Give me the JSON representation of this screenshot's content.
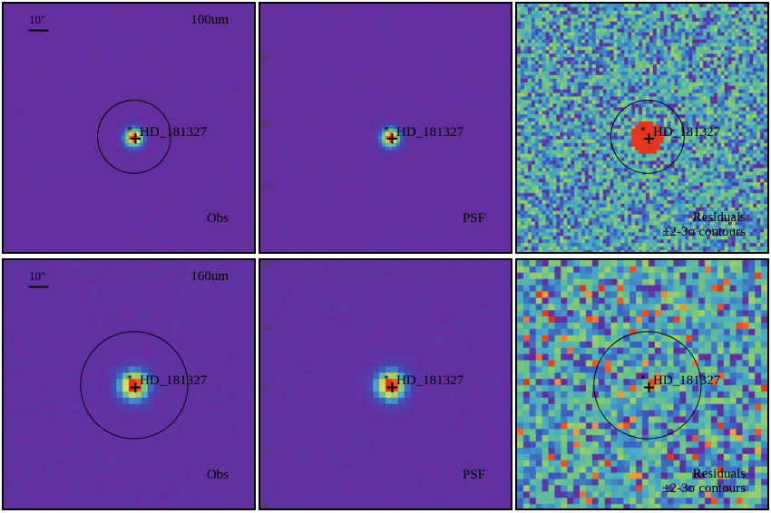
{
  "source_name": "HD_181327",
  "scalebar_label": "10\"",
  "rows": [
    {
      "band": "100um",
      "panels": [
        {
          "id": "obs",
          "label": "Obs",
          "type": "obs"
        },
        {
          "id": "psf",
          "label": "PSF",
          "type": "psf"
        },
        {
          "id": "res",
          "label_line1": "Residuals",
          "label_line2": "±2-3σ contours",
          "type": "residual"
        }
      ],
      "side_ticks": [
        "60",
        "40",
        "20"
      ]
    },
    {
      "band": "160um",
      "panels": [
        {
          "id": "obs",
          "label": "Obs",
          "type": "obs"
        },
        {
          "id": "psf",
          "label": "PSF",
          "type": "psf"
        },
        {
          "id": "res",
          "label_line1": "Residuals",
          "label_line2": "±2-3σ contours",
          "type": "residual"
        }
      ],
      "side_ticks": [
        "40",
        "30",
        "20",
        "10",
        "0"
      ]
    }
  ],
  "colors": {
    "background": "#6a2a94",
    "core": "#e02a1e",
    "residual_bg": "#7fc27f"
  }
}
